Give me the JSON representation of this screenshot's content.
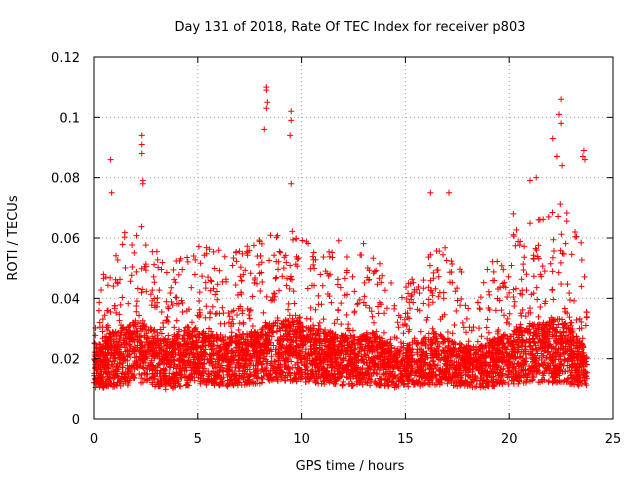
{
  "chart_data": {
    "type": "scatter",
    "title": "Day 131 of 2018, Rate Of TEC Index for receiver p803",
    "xlabel": "GPS time / hours",
    "ylabel": "ROTI / TECUs",
    "xlim": [
      0,
      25
    ],
    "ylim": [
      0,
      0.12
    ],
    "x_ticks": [
      0,
      5,
      10,
      15,
      20,
      25
    ],
    "y_ticks": [
      0,
      0.02,
      0.04,
      0.06,
      0.08,
      0.1,
      0.12
    ],
    "x_tick_labels": [
      "0",
      "5",
      "10",
      "15",
      "20",
      "25"
    ],
    "y_tick_labels": [
      "0",
      "0.02",
      "0.04",
      "0.06",
      "0.08",
      "0.1",
      "0.12"
    ],
    "grid": true,
    "marker": "+",
    "series_color": "#ff0000",
    "x_range_data": [
      0,
      23.75
    ],
    "notable_points": [
      {
        "x": 0.8,
        "y": 0.086
      },
      {
        "x": 0.85,
        "y": 0.075
      },
      {
        "x": 2.3,
        "y": 0.094
      },
      {
        "x": 2.3,
        "y": 0.091
      },
      {
        "x": 2.3,
        "y": 0.088
      },
      {
        "x": 2.35,
        "y": 0.079
      },
      {
        "x": 2.35,
        "y": 0.078
      },
      {
        "x": 8.3,
        "y": 0.11
      },
      {
        "x": 8.3,
        "y": 0.109
      },
      {
        "x": 8.35,
        "y": 0.105
      },
      {
        "x": 8.3,
        "y": 0.103
      },
      {
        "x": 8.2,
        "y": 0.096
      },
      {
        "x": 9.5,
        "y": 0.102
      },
      {
        "x": 9.5,
        "y": 0.099
      },
      {
        "x": 9.45,
        "y": 0.094
      },
      {
        "x": 9.5,
        "y": 0.078
      },
      {
        "x": 16.2,
        "y": 0.075
      },
      {
        "x": 17.1,
        "y": 0.075
      },
      {
        "x": 22.1,
        "y": 0.093
      },
      {
        "x": 22.3,
        "y": 0.087
      },
      {
        "x": 22.4,
        "y": 0.101
      },
      {
        "x": 22.5,
        "y": 0.106
      },
      {
        "x": 22.5,
        "y": 0.098
      },
      {
        "x": 22.55,
        "y": 0.084
      },
      {
        "x": 23.6,
        "y": 0.089
      },
      {
        "x": 23.65,
        "y": 0.086
      },
      {
        "x": 23.55,
        "y": 0.087
      },
      {
        "x": 20.2,
        "y": 0.068
      },
      {
        "x": 21.0,
        "y": 0.079
      },
      {
        "x": 21.3,
        "y": 0.08
      }
    ],
    "density_profile": [
      {
        "x": 0,
        "base": 0.017,
        "spread": 0.012,
        "max": 0.032
      },
      {
        "x": 0.5,
        "base": 0.019,
        "spread": 0.016,
        "max": 0.05
      },
      {
        "x": 1.5,
        "base": 0.021,
        "spread": 0.018,
        "max": 0.062
      },
      {
        "x": 2.5,
        "base": 0.022,
        "spread": 0.019,
        "max": 0.065
      },
      {
        "x": 3.5,
        "base": 0.018,
        "spread": 0.015,
        "max": 0.05
      },
      {
        "x": 4.5,
        "base": 0.021,
        "spread": 0.018,
        "max": 0.062
      },
      {
        "x": 5.5,
        "base": 0.02,
        "spread": 0.016,
        "max": 0.058
      },
      {
        "x": 6.5,
        "base": 0.019,
        "spread": 0.015,
        "max": 0.055
      },
      {
        "x": 7.5,
        "base": 0.02,
        "spread": 0.016,
        "max": 0.058
      },
      {
        "x": 8.5,
        "base": 0.022,
        "spread": 0.018,
        "max": 0.062
      },
      {
        "x": 9.5,
        "base": 0.023,
        "spread": 0.019,
        "max": 0.065
      },
      {
        "x": 10.5,
        "base": 0.021,
        "spread": 0.017,
        "max": 0.062
      },
      {
        "x": 11.5,
        "base": 0.02,
        "spread": 0.016,
        "max": 0.06
      },
      {
        "x": 12.5,
        "base": 0.019,
        "spread": 0.015,
        "max": 0.058
      },
      {
        "x": 13.5,
        "base": 0.02,
        "spread": 0.016,
        "max": 0.06
      },
      {
        "x": 14.5,
        "base": 0.017,
        "spread": 0.012,
        "max": 0.042
      },
      {
        "x": 15.5,
        "base": 0.018,
        "spread": 0.013,
        "max": 0.048
      },
      {
        "x": 16.5,
        "base": 0.02,
        "spread": 0.016,
        "max": 0.062
      },
      {
        "x": 17.5,
        "base": 0.018,
        "spread": 0.013,
        "max": 0.05
      },
      {
        "x": 18.5,
        "base": 0.017,
        "spread": 0.013,
        "max": 0.048
      },
      {
        "x": 19.5,
        "base": 0.019,
        "spread": 0.015,
        "max": 0.055
      },
      {
        "x": 20.5,
        "base": 0.021,
        "spread": 0.017,
        "max": 0.065
      },
      {
        "x": 21.5,
        "base": 0.022,
        "spread": 0.018,
        "max": 0.068
      },
      {
        "x": 22.5,
        "base": 0.023,
        "spread": 0.02,
        "max": 0.072
      },
      {
        "x": 23.5,
        "base": 0.018,
        "spread": 0.013,
        "max": 0.06
      },
      {
        "x": 23.75,
        "base": 0.016,
        "spread": 0.01,
        "max": 0.04
      }
    ],
    "floor": 0.004,
    "point_count": 5200
  }
}
